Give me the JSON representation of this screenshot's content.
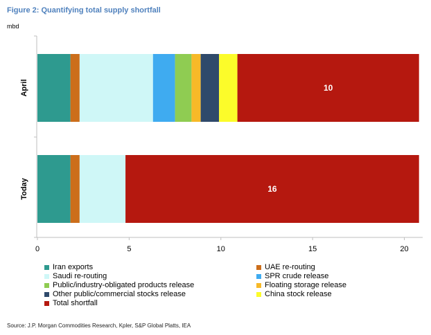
{
  "title": "Figure 2: Quantifying total supply shortfall",
  "unit": "mbd",
  "source": "Source: J.P. Morgan Commodities Research, Kpler, S&P Global Platts, IEA",
  "chart_data": {
    "type": "bar",
    "orientation": "horizontal",
    "stacked": true,
    "categories": [
      "April",
      "Today"
    ],
    "series": [
      {
        "name": "Iran exports",
        "color": "#2e9a8f",
        "values": [
          1.8,
          1.8
        ]
      },
      {
        "name": "UAE re-routing",
        "color": "#cc6e1b",
        "values": [
          0.5,
          0.5
        ]
      },
      {
        "name": "Saudi re-routing",
        "color": "#cff7f7",
        "values": [
          4.0,
          2.5
        ]
      },
      {
        "name": "SPR crude release",
        "color": "#3fabf0",
        "values": [
          1.2,
          0
        ]
      },
      {
        "name": "Public/industry-obligated products release",
        "color": "#8fcc52",
        "values": [
          0.9,
          0
        ]
      },
      {
        "name": "Floating storage release",
        "color": "#f7b928",
        "values": [
          0.5,
          0
        ]
      },
      {
        "name": "Other public/commercial stocks release",
        "color": "#2f4a6b",
        "values": [
          1.0,
          0
        ]
      },
      {
        "name": "China stock release",
        "color": "#fcfc2a",
        "values": [
          1.0,
          0
        ]
      },
      {
        "name": "Total shortfall",
        "color": "#b5180f",
        "values": [
          9.9,
          16.0
        ]
      }
    ],
    "data_labels": {
      "Total shortfall": [
        "10",
        "16"
      ]
    },
    "xlim": [
      0,
      21
    ],
    "xticks": [
      0,
      5,
      10,
      15,
      20
    ],
    "xlabel": "",
    "ylabel": "",
    "grid": false,
    "legend_position": "bottom"
  }
}
